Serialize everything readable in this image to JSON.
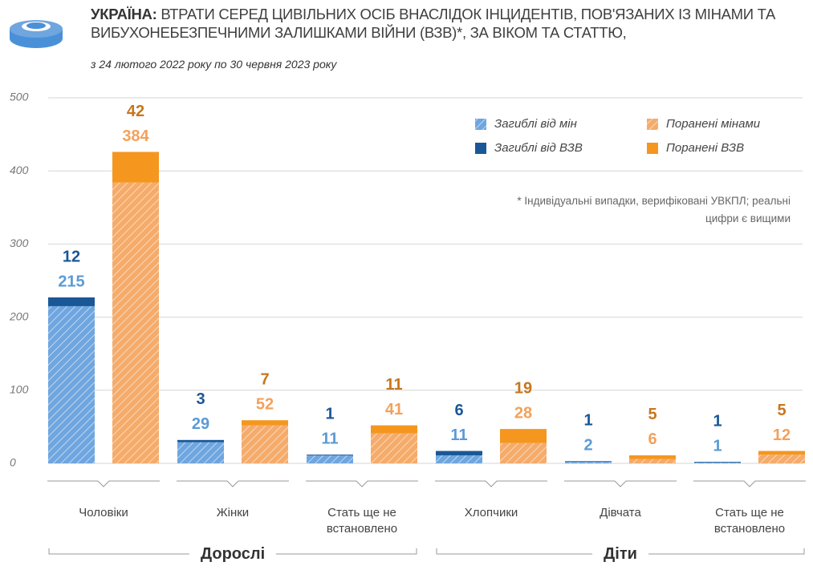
{
  "chart_data": {
    "type": "bar",
    "title_prefix": "УКРАЇНА:",
    "title": "ВТРАТИ СЕРЕД ЦИВІЛЬНИХ ОСІБ ВНАСЛІДОК ІНЦИДЕНТІВ, ПОВ'ЯЗАНИХ ІЗ МІНАМИ ТА ВИБУХОНЕБЕЗПЕЧНИМИ ЗАЛИШКАМИ ВІЙНИ (ВЗВ)*, ЗА ВІКОМ ТА СТАТТЮ,",
    "subtitle": "з 24 лютого 2022 року по 30 червня 2023 року",
    "annotation": "* Індивідуальні випадки, верифіковані УВКПЛ; реальні цифри є вищими",
    "categories": [
      "Чоловіки",
      "Жінки",
      "Стать ще не встановлено",
      "Хлопчики",
      "Дівчата",
      "Стать ще не встановлено"
    ],
    "groups": [
      "Дорослі",
      "Діти"
    ],
    "series": [
      {
        "name": "Загиблі від мін",
        "color": "#6fa6df",
        "hatch": true,
        "values": [
          215,
          29,
          11,
          11,
          2,
          1
        ]
      },
      {
        "name": "Загиблі від ВЗВ",
        "color": "#1a5796",
        "hatch": false,
        "values": [
          12,
          3,
          1,
          6,
          1,
          1
        ]
      },
      {
        "name": "Поранені мінами",
        "color": "#f5ab6a",
        "hatch": true,
        "values": [
          384,
          52,
          41,
          28,
          6,
          12
        ]
      },
      {
        "name": "Поранені ВЗВ",
        "color": "#f5961e",
        "hatch": false,
        "values": [
          42,
          7,
          11,
          19,
          5,
          5
        ]
      }
    ],
    "ylim": [
      0,
      500
    ],
    "yticks": [
      0,
      100,
      200,
      300,
      400,
      500
    ],
    "grid": true
  }
}
